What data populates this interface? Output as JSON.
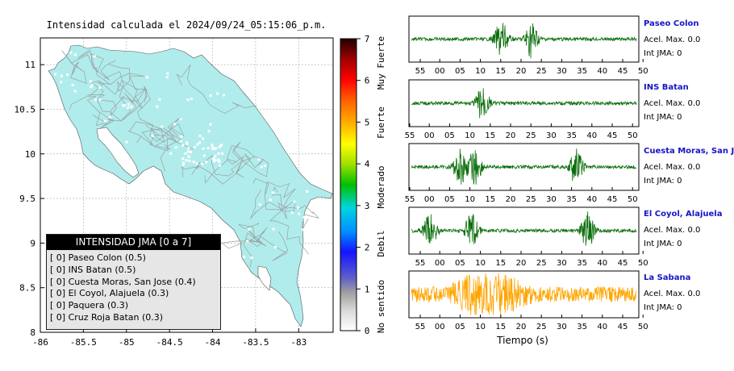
{
  "map": {
    "title": "Intensidad calculada el 2024/09/24_05:15:06_p.m.",
    "x_ticks": [
      "-86",
      "-85.5",
      "-85",
      "-84.5",
      "-84",
      "-83.5",
      "-83"
    ],
    "y_ticks": [
      "11",
      "10.5",
      "10",
      "9.5",
      "9",
      "8.5",
      "8"
    ],
    "land_color": "#b0ecec"
  },
  "colorbar": {
    "ticks": [
      "7",
      "6",
      "5",
      "4",
      "3",
      "2",
      "1",
      "0"
    ],
    "labels": [
      "Muy Fuerte",
      "Fuerte",
      "Moderado",
      "Debil",
      "No sentido"
    ]
  },
  "legend": {
    "title": "INTENSIDAD JMA [0 a 7]",
    "rows": [
      {
        "code": "[ 0]",
        "text": "Paseo Colon (0.5)"
      },
      {
        "code": "[ 0]",
        "text": "INS Batan (0.5)"
      },
      {
        "code": "[ 0]",
        "text": "Cuesta Moras, San Jose (0.4)"
      },
      {
        "code": "[ 0]",
        "text": "El Coyol, Alajuela (0.3)"
      },
      {
        "code": "[ 0]",
        "text": "Paquera (0.3)"
      },
      {
        "code": "[ 0]",
        "text": "Cruz Roja Batan (0.3)"
      }
    ]
  },
  "waveforms": {
    "xlabel": "Tiempo (s)",
    "tick_sets": [
      [
        "55",
        "00",
        "05",
        "10",
        "15",
        "20",
        "25",
        "30",
        "35",
        "40",
        "45",
        "50"
      ],
      [
        "55",
        "00",
        "05",
        "10",
        "15",
        "20",
        "25",
        "30",
        "35",
        "40",
        "45",
        "50"
      ],
      [
        "55",
        "00",
        "05",
        "10",
        "15",
        "20",
        "25",
        "30",
        "35",
        "40",
        "45",
        "50"
      ],
      [
        "55",
        "00",
        "05",
        "10",
        "15",
        "20",
        "25",
        "30",
        "35",
        "40",
        "45",
        "50"
      ],
      [
        "55",
        "00",
        "05",
        "10",
        "15",
        "20",
        "25",
        "30",
        "35",
        "40",
        "45",
        "50"
      ]
    ],
    "stations": [
      {
        "name": "Paseo Colon",
        "acel": "Acel. Max. 0.0",
        "jma": "Int JMA: 0",
        "color": "#0a6e0a"
      },
      {
        "name": "INS Batan",
        "acel": "Acel. Max. 0.0",
        "jma": "Int JMA: 0",
        "color": "#0a6e0a"
      },
      {
        "name": "Cuesta Moras, San Jose",
        "acel": "Acel. Max. 0.0",
        "jma": "Int JMA: 0",
        "color": "#0a6e0a"
      },
      {
        "name": "El Coyol, Alajuela",
        "acel": "Acel. Max. 0.0",
        "jma": "Int JMA: 0",
        "color": "#0a6e0a"
      },
      {
        "name": "La Sabana",
        "acel": "Acel. Max. 0.0",
        "jma": "Int JMA: 0",
        "color": "#ffa500"
      }
    ]
  },
  "chart_data": [
    {
      "type": "scatter",
      "title": "Intensidad calculada el 2024/09/24_05:15:06_p.m.",
      "xlim": [
        -86,
        -82.6
      ],
      "ylim": [
        8,
        11.3
      ],
      "colorbar": {
        "range": [
          0,
          7
        ],
        "labels": [
          "No sentido",
          "Debil",
          "Moderado",
          "Fuerte",
          "Muy Fuerte"
        ]
      },
      "legend": {
        "title": "INTENSIDAD JMA [0 a 7]",
        "placement": "bottom-left"
      }
    },
    {
      "type": "line",
      "xlabel": "Tiempo (s)",
      "series": [
        {
          "name": "Paseo Colon",
          "events": [
            24,
            32
          ]
        },
        {
          "name": "INS Batan",
          "events": [
            19
          ]
        },
        {
          "name": "Cuesta Moras, San Jose",
          "events": [
            13,
            17,
            44
          ]
        },
        {
          "name": "El Coyol, Alajuela",
          "events": [
            5,
            16,
            47
          ]
        },
        {
          "name": "La Sabana",
          "events": [
            17,
            24
          ]
        }
      ]
    }
  ]
}
